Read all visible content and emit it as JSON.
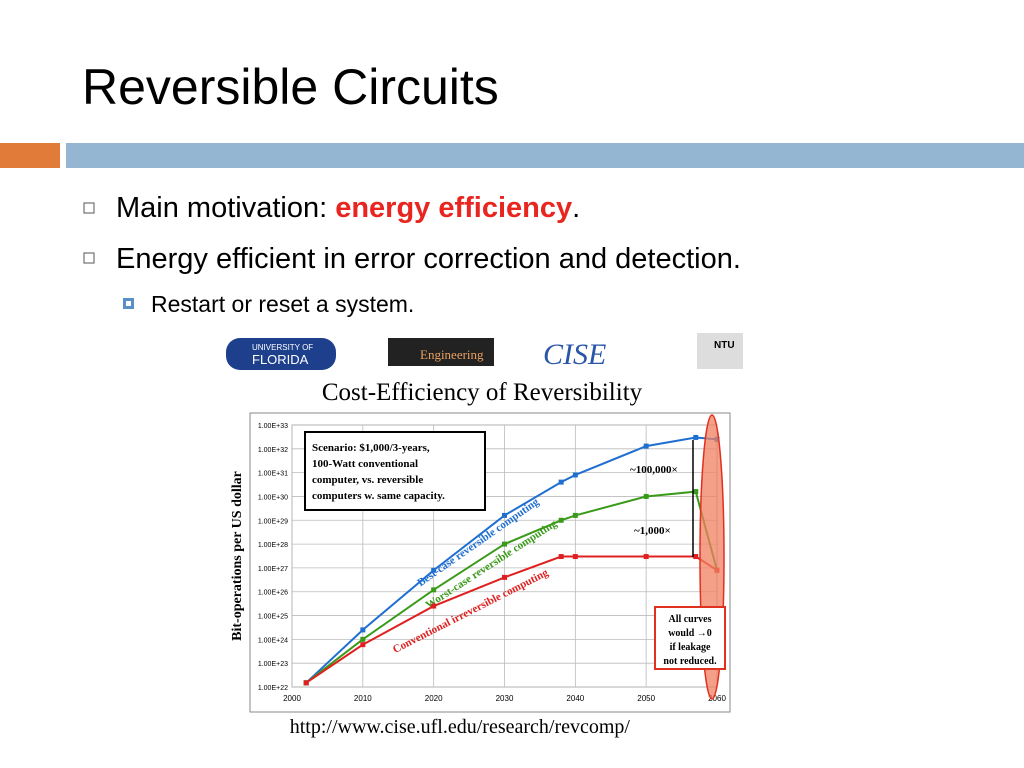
{
  "slide": {
    "title": "Reversible Circuits",
    "bullets": [
      {
        "parts": [
          "Main motivation: ",
          "energy efficiency",
          "."
        ]
      },
      {
        "parts": [
          "Energy efficient in error correction and detection."
        ]
      }
    ],
    "sub_bullets": [
      "Restart or reset a system."
    ],
    "logos": [
      "UNIVERSITY OF",
      "FLORIDA",
      "Engineering",
      "CISE",
      "NTU"
    ],
    "url": "http://www.cise.ufl.edu/research/revcomp/"
  },
  "chart_data": {
    "type": "line",
    "title": "Cost-Efficiency of Reversibility",
    "y_label": "Bit-operations per US dollar",
    "ylog": true,
    "grid": true,
    "x": [
      2002,
      2010,
      2020,
      2030,
      2038,
      2040,
      2050,
      2057,
      2060
    ],
    "series": [
      {
        "name": "Best-case reversible computing",
        "color": "#1f6fd0",
        "values": [
          1.5e+22,
          2.5e+24,
          8e+26,
          1.6e+29,
          4e+30,
          8e+30,
          1.3e+32,
          3e+32,
          2.5e+32
        ]
      },
      {
        "name": "Worst-case reversible computing",
        "color": "#3a9a1a",
        "values": [
          1.5e+22,
          1e+24,
          1.2e+26,
          1e+28,
          1e+29,
          1.6e+29,
          1e+30,
          1.6e+30,
          8e+26
        ]
      },
      {
        "name": "Conventional irreversible computing",
        "color": "#e02020",
        "values": [
          1.5e+22,
          6e+23,
          2.5e+25,
          4e+26,
          3e+27,
          3e+27,
          3e+27,
          3e+27,
          8e+26
        ]
      }
    ],
    "xlim": [
      2000,
      2060
    ],
    "xticks": [
      2000,
      2010,
      2020,
      2030,
      2040,
      2050,
      2060
    ],
    "ylim": [
      1e+22,
      1e+33
    ],
    "yticks": [
      {
        "value": 1e+22,
        "label": "1.00E+22"
      },
      {
        "value": 1e+23,
        "label": "1.00E+23"
      },
      {
        "value": 1e+24,
        "label": "1.00E+24"
      },
      {
        "value": 1e+25,
        "label": "1.00E+25"
      },
      {
        "value": 1e+26,
        "label": "1.00E+26"
      },
      {
        "value": 1e+27,
        "label": "1.00E+27"
      },
      {
        "value": 1e+28,
        "label": "1.00E+28"
      },
      {
        "value": 1e+29,
        "label": "1.00E+29"
      },
      {
        "value": 1e+30,
        "label": "1.00E+30"
      },
      {
        "value": 1e+31,
        "label": "1.00E+31"
      },
      {
        "value": 1e+32,
        "label": "1.00E+32"
      },
      {
        "value": 1e+33,
        "label": "1.00E+33"
      }
    ],
    "annotations": {
      "scenario": [
        "Scenario: $1,000/3-years,",
        "100-Watt conventional",
        "computer, vs. reversible",
        "computers w. same capacity."
      ],
      "ratio_high": "~100,000×",
      "ratio_low": "~1,000×",
      "leakage": [
        "All curves",
        "would →0",
        "if leakage",
        "not reduced."
      ]
    }
  }
}
